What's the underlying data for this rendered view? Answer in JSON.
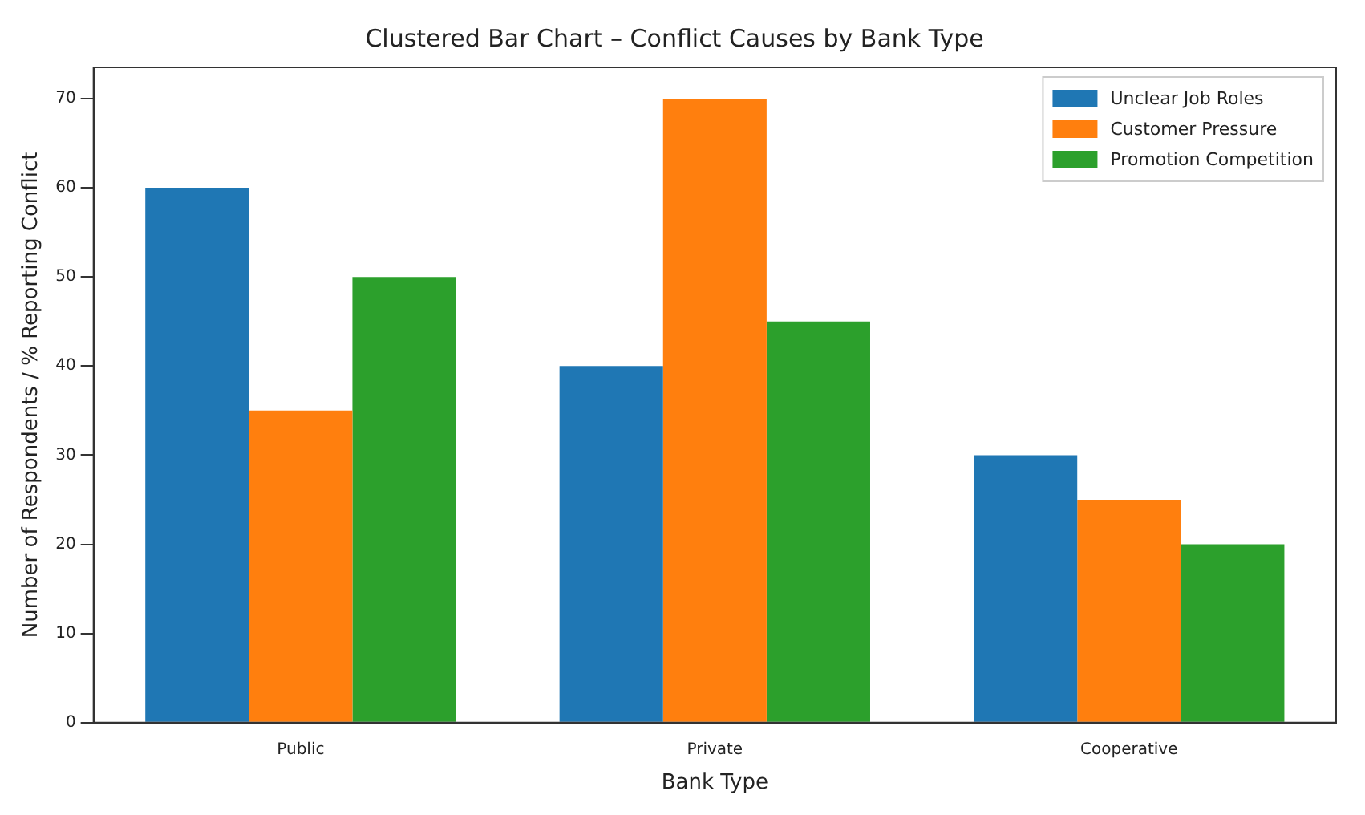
{
  "chart_data": {
    "type": "bar",
    "title": "Clustered Bar Chart – Conflict Causes by Bank Type",
    "xlabel": "Bank Type",
    "ylabel": "Number of Respondents / % Reporting Conflict",
    "categories": [
      "Public",
      "Private",
      "Cooperative"
    ],
    "series": [
      {
        "name": "Unclear Job Roles",
        "color": "#1f77b4",
        "values": [
          60,
          40,
          30
        ]
      },
      {
        "name": "Customer Pressure",
        "color": "#ff7f0e",
        "values": [
          35,
          70,
          25
        ]
      },
      {
        "name": "Promotion Competition",
        "color": "#2ca02c",
        "values": [
          50,
          45,
          20
        ]
      }
    ],
    "ylim": [
      0,
      73.5
    ],
    "yticks": [
      0,
      10,
      20,
      30,
      40,
      50,
      60,
      70
    ],
    "grid": false,
    "legend": "top right"
  }
}
